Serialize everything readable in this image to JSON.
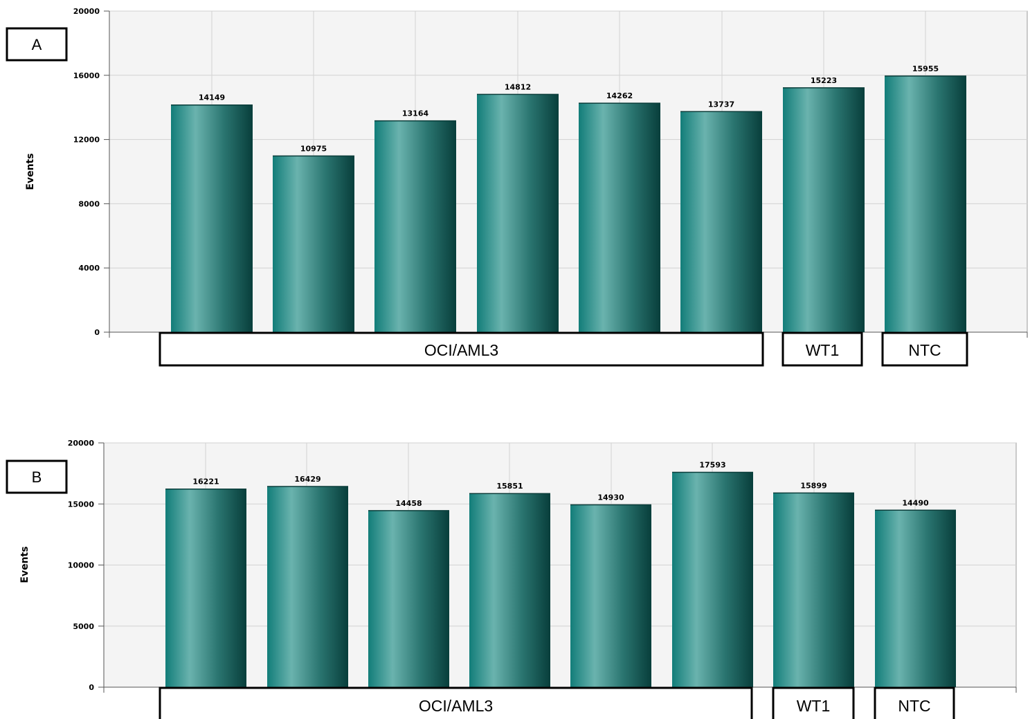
{
  "chart_data": [
    {
      "type": "bar",
      "panel": "A",
      "ylabel": "Events",
      "ylim": [
        0,
        20000
      ],
      "yticks": [
        0,
        4000,
        8000,
        12000,
        16000,
        20000
      ],
      "values": [
        14149,
        10975,
        13164,
        14812,
        14262,
        13737,
        15223,
        15955
      ],
      "value_labels": [
        "14149",
        "10975",
        "13164",
        "14812",
        "14262",
        "13737",
        "15223",
        "15955"
      ],
      "groups": [
        {
          "label": "OCI/AML3",
          "bars": [
            0,
            5
          ]
        },
        {
          "label": "WT1",
          "bars": [
            6,
            6
          ]
        },
        {
          "label": "NTC",
          "bars": [
            7,
            7
          ]
        }
      ],
      "grid": true,
      "colors": {
        "bar_dark": "#0b4a47",
        "bar_mid": "#1a8a86",
        "bar_light": "#6ab3ae",
        "plot_bg": "#f4f4f4"
      }
    },
    {
      "type": "bar",
      "panel": "B",
      "ylabel": "Events",
      "ylim": [
        0,
        20000
      ],
      "yticks": [
        0,
        5000,
        10000,
        15000,
        20000
      ],
      "values": [
        16221,
        16429,
        14458,
        15851,
        14930,
        17593,
        15899,
        14490
      ],
      "value_labels": [
        "16221",
        "16429",
        "14458",
        "15851",
        "14930",
        "17593",
        "15899",
        "14490"
      ],
      "groups": [
        {
          "label": "OCI/AML3",
          "bars": [
            0,
            5
          ]
        },
        {
          "label": "WT1",
          "bars": [
            6,
            6
          ]
        },
        {
          "label": "NTC",
          "bars": [
            7,
            7
          ]
        }
      ],
      "grid": true,
      "colors": {
        "bar_dark": "#0b4a47",
        "bar_mid": "#1a8a86",
        "bar_light": "#6ab3ae",
        "plot_bg": "#f4f4f4"
      }
    }
  ]
}
